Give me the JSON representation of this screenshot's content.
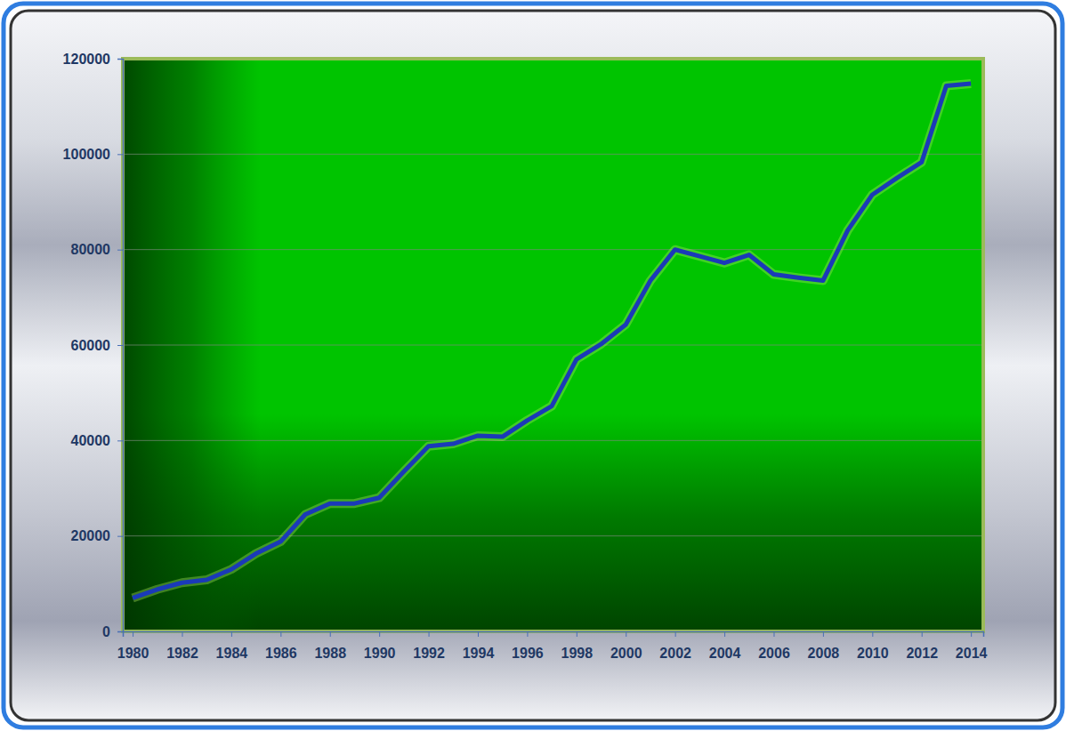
{
  "chart_data": {
    "type": "line",
    "x": [
      1980,
      1981,
      1982,
      1983,
      1984,
      1985,
      1986,
      1987,
      1988,
      1989,
      1990,
      1991,
      1992,
      1993,
      1994,
      1995,
      1996,
      1997,
      1998,
      1999,
      2000,
      2001,
      2002,
      2003,
      2004,
      2005,
      2006,
      2007,
      2008,
      2009,
      2010,
      2011,
      2012,
      2013,
      2014
    ],
    "values": [
      7000,
      8800,
      10200,
      10800,
      13000,
      16300,
      18800,
      24500,
      26800,
      26800,
      28000,
      33500,
      38800,
      39300,
      41000,
      40800,
      44200,
      47200,
      57000,
      60200,
      64300,
      73500,
      80000,
      78600,
      77200,
      78900,
      74800,
      74100,
      73500,
      84000,
      91500,
      95000,
      98300,
      114300,
      114800
    ],
    "color": "#1a3ab8",
    "xlim": [
      1979.6,
      2014.5
    ],
    "xticks": [
      1980,
      1982,
      1984,
      1986,
      1988,
      1990,
      1992,
      1994,
      1996,
      1998,
      2000,
      2002,
      2004,
      2006,
      2008,
      2010,
      2012,
      2014
    ],
    "ylim": [
      0,
      120000
    ],
    "yticks": [
      0,
      20000,
      40000,
      60000,
      80000,
      100000,
      120000
    ],
    "grid": true
  }
}
